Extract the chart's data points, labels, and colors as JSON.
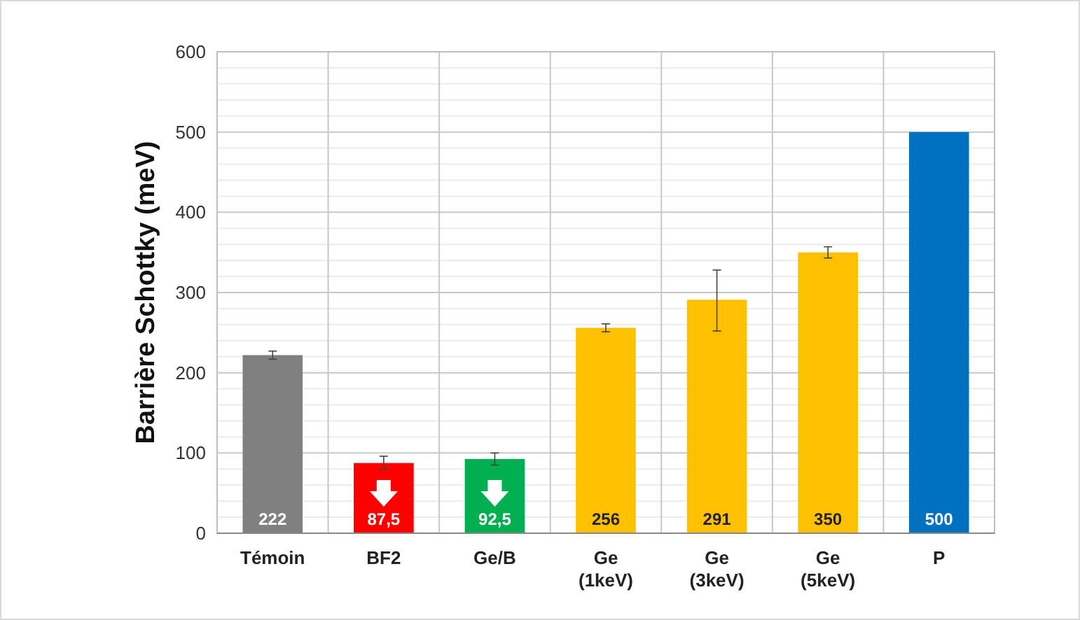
{
  "chart_data": {
    "type": "bar",
    "ylabel": "Barrière Schottky (meV)",
    "categories": [
      "Témoin",
      "BF2",
      "Ge/B",
      "Ge\n(1keV)",
      "Ge\n(3keV)",
      "Ge\n(5keV)",
      "P"
    ],
    "values": [
      222,
      87.5,
      92.5,
      256,
      291,
      350,
      500
    ],
    "colors": [
      "#808080",
      "#ff0000",
      "#00b050",
      "#ffc000",
      "#ffc000",
      "#ffc000",
      "#0070c0"
    ],
    "value_labels": [
      "222",
      "87,5",
      "92,5",
      "256",
      "291",
      "350",
      "500"
    ],
    "errors": [
      5,
      [
        80,
        96
      ],
      [
        85,
        100
      ],
      5,
      [
        252,
        328
      ],
      7,
      null
    ],
    "ylim": [
      0,
      600
    ],
    "yticks": [
      0,
      100,
      200,
      300,
      400,
      500,
      600
    ],
    "grid": true
  }
}
